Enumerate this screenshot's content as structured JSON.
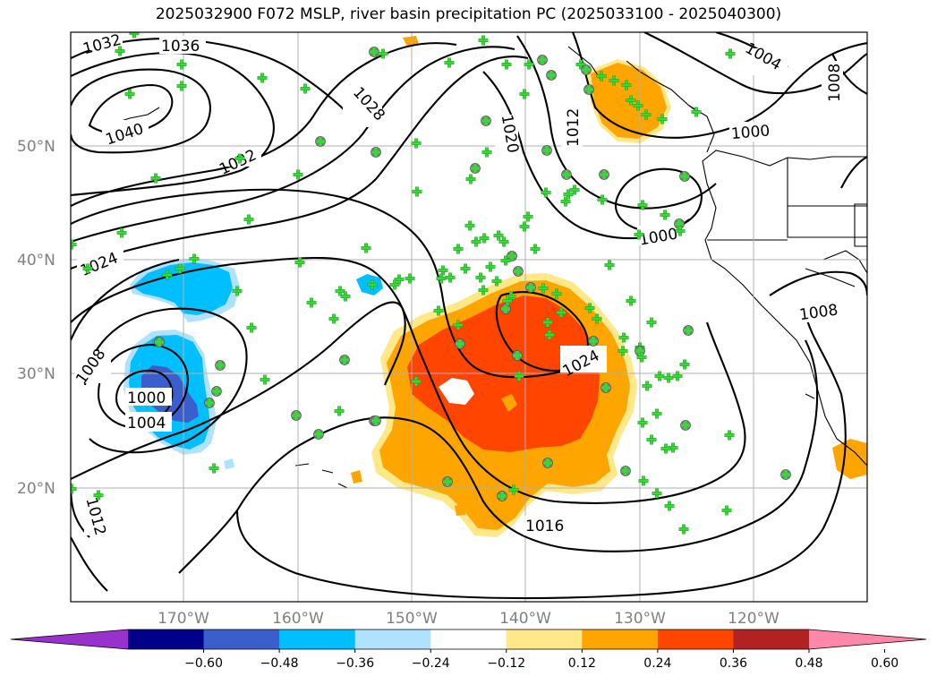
{
  "title": "2025032900 F072 MSLP, river basin precipitation PC (2025033100 - 2025040300)",
  "map": {
    "lat_labels": [
      "50°N",
      "40°N",
      "30°N",
      "20°N"
    ],
    "lon_labels": [
      "170°W",
      "160°W",
      "150°W",
      "140°W",
      "130°W",
      "120°W"
    ],
    "isobar_labels": [
      "1032",
      "1036",
      "1040",
      "1032",
      "1028",
      "1020",
      "1012",
      "1004",
      "1008",
      "1000",
      "1024",
      "1008",
      "1000",
      "1004",
      "1024",
      "1016",
      "1012",
      "1008",
      "1000"
    ]
  },
  "colorbar": {
    "ticks": [
      "−0.60",
      "−0.48",
      "−0.36",
      "−0.24",
      "−0.12",
      "0.12",
      "0.24",
      "0.36",
      "0.48",
      "0.60"
    ],
    "colors": [
      "#9932CC",
      "#00008B",
      "#3A5FCD",
      "#00BFFF",
      "#B0E2FF",
      "#FFFFFF",
      "#FFE88A",
      "#FFA500",
      "#FF4500",
      "#B22222",
      "#FF88AA"
    ]
  }
}
